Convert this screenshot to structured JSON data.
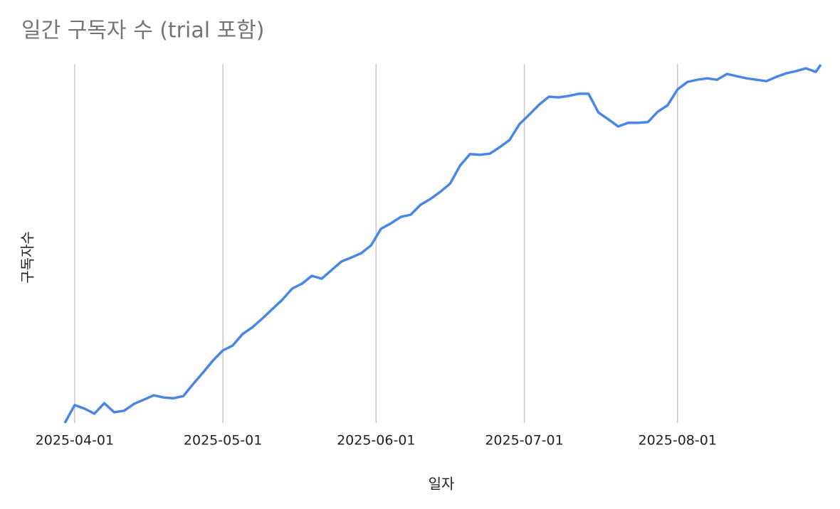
{
  "chart_data": {
    "type": "line",
    "title": "일간 구독자 수 (trial 포함)",
    "x_label": "일자",
    "y_label": "구독자수",
    "color": "#4a86e8",
    "grid": true,
    "x": [
      "2025-03-30",
      "2025-04-01",
      "2025-04-03",
      "2025-04-05",
      "2025-04-07",
      "2025-04-09",
      "2025-04-11",
      "2025-04-13",
      "2025-04-15",
      "2025-04-17",
      "2025-04-19",
      "2025-04-21",
      "2025-04-23",
      "2025-04-25",
      "2025-04-27",
      "2025-04-29",
      "2025-05-01",
      "2025-05-03",
      "2025-05-05",
      "2025-05-07",
      "2025-05-09",
      "2025-05-11",
      "2025-05-13",
      "2025-05-15",
      "2025-05-17",
      "2025-05-19",
      "2025-05-21",
      "2025-05-23",
      "2025-05-25",
      "2025-05-27",
      "2025-05-29",
      "2025-05-31",
      "2025-06-02",
      "2025-06-04",
      "2025-06-06",
      "2025-06-08",
      "2025-06-10",
      "2025-06-12",
      "2025-06-14",
      "2025-06-16",
      "2025-06-18",
      "2025-06-20",
      "2025-06-22",
      "2025-06-24",
      "2025-06-26",
      "2025-06-28",
      "2025-06-30",
      "2025-07-02",
      "2025-07-04",
      "2025-07-06",
      "2025-07-08",
      "2025-07-10",
      "2025-07-12",
      "2025-07-14",
      "2025-07-16",
      "2025-07-18",
      "2025-07-20",
      "2025-07-22",
      "2025-07-24",
      "2025-07-26",
      "2025-07-28",
      "2025-07-30",
      "2025-08-01",
      "2025-08-03",
      "2025-08-05",
      "2025-08-07",
      "2025-08-09",
      "2025-08-11",
      "2025-08-13",
      "2025-08-15",
      "2025-08-17",
      "2025-08-19",
      "2025-08-21",
      "2025-08-23",
      "2025-08-25",
      "2025-08-27",
      "2025-08-29",
      "2025-08-30"
    ],
    "values": [
      0,
      5.0,
      4.0,
      2.6,
      5.5,
      3.0,
      3.4,
      5.3,
      6.5,
      7.7,
      7.1,
      6.9,
      7.5,
      10.9,
      14.1,
      17.4,
      20.2,
      21.6,
      24.8,
      26.7,
      29.1,
      31.7,
      34.3,
      37.4,
      38.8,
      41.0,
      40.2,
      42.6,
      45.0,
      46.1,
      47.3,
      49.5,
      54.1,
      55.6,
      57.4,
      58.0,
      60.8,
      62.4,
      64.4,
      66.7,
      71.7,
      74.9,
      74.7,
      75.0,
      76.8,
      78.8,
      83.2,
      85.9,
      88.7,
      90.9,
      90.7,
      91.1,
      91.7,
      91.7,
      86.5,
      84.6,
      82.6,
      83.6,
      83.6,
      83.8,
      86.7,
      88.5,
      92.9,
      95.0,
      95.6,
      96.0,
      95.6,
      97.2,
      96.6,
      96.0,
      95.6,
      95.2,
      96.4,
      97.4,
      98.0,
      98.8,
      97.8,
      99.8
    ],
    "xlim": [
      "2025-03-30",
      "2025-08-30"
    ],
    "xticks": [
      "2025-04-01",
      "2025-05-01",
      "2025-06-01",
      "2025-07-01",
      "2025-08-01"
    ],
    "ylim": [
      0,
      100
    ]
  }
}
